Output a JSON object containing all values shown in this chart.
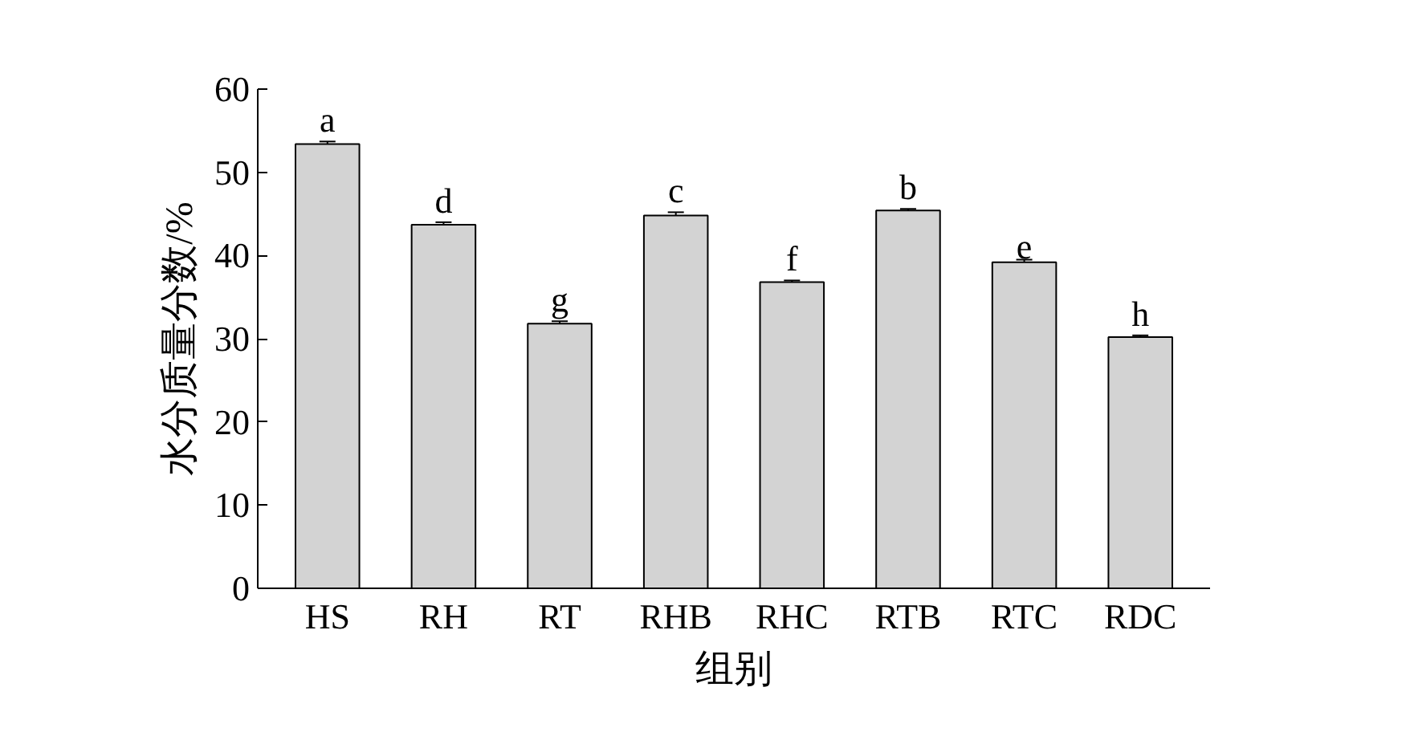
{
  "chart_data": {
    "type": "bar",
    "xlabel": "组别",
    "ylabel": "水分质量分数/%",
    "categories": [
      "HS",
      "RH",
      "RT",
      "RHB",
      "RHC",
      "RTB",
      "RTC",
      "RDC"
    ],
    "values": [
      53.4,
      43.7,
      31.8,
      44.8,
      36.8,
      45.4,
      39.2,
      30.2
    ],
    "errors": [
      0.3,
      0.3,
      0.3,
      0.4,
      0.2,
      0.2,
      0.3,
      0.2
    ],
    "color": "#d3d3d3",
    "ylim": [
      0,
      60
    ],
    "yticks": [
      0,
      10,
      20,
      30,
      40,
      50,
      60
    ],
    "grid": false,
    "annotations": [
      {
        "text": "a",
        "x": "HS",
        "y": 53.7
      },
      {
        "text": "d",
        "x": "RH",
        "y": 44.0
      },
      {
        "text": "g",
        "x": "RT",
        "y": 32.1
      },
      {
        "text": "c",
        "x": "RHB",
        "y": 45.2
      },
      {
        "text": "f",
        "x": "RHC",
        "y": 37.0
      },
      {
        "text": "b",
        "x": "RTB",
        "y": 45.6
      },
      {
        "text": "e",
        "x": "RTC",
        "y": 39.5
      },
      {
        "text": "h",
        "x": "RDC",
        "y": 30.4
      }
    ]
  }
}
